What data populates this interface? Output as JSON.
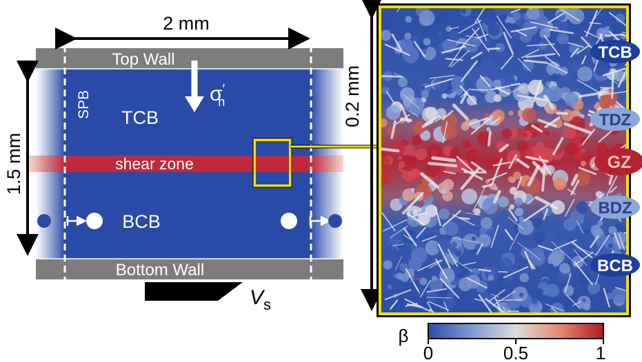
{
  "left_panel": {
    "width_label": "2 mm",
    "height_label": "1.5 mm",
    "top_wall_label": "Top Wall",
    "bottom_wall_label": "Bottom Wall",
    "spb_label": "SPB",
    "normal_stress_label": "σ",
    "normal_stress_sub": "n",
    "normal_stress_prime": "′",
    "top_block_label": "TCB",
    "shear_zone_label": "shear zone",
    "bottom_block_label": "BCB",
    "velocity_label": "V",
    "velocity_sub": "s"
  },
  "right_panel": {
    "height_label": "0.2 mm",
    "zone_labels": [
      "TCB",
      "TDZ",
      "GZ",
      "BDZ",
      "BCB"
    ]
  },
  "colorbar": {
    "symbol": "β",
    "tick_labels": [
      "0",
      "0.5",
      "1"
    ]
  },
  "colors": {
    "block_blue": "#2a4aa8",
    "shear_red": "#c0283c",
    "wall_gray": "#7d7d7d",
    "highlight_yellow": "#f2e000",
    "gz_red": "#b52233",
    "dz_blue": "#8da6d6",
    "cb_blue": "#1d3f9b"
  }
}
